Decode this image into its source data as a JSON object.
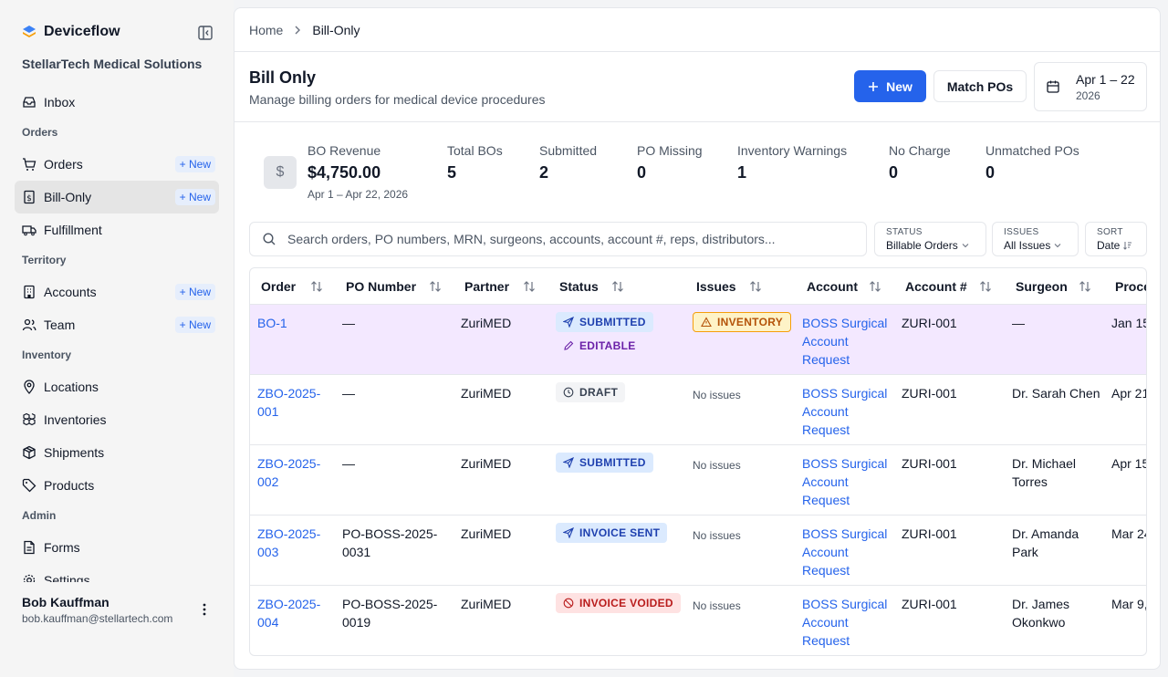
{
  "app": {
    "name": "Deviceflow",
    "org": "StellarTech Medical Solutions"
  },
  "sidebar": {
    "new_label": "New",
    "items": [
      {
        "label": "Inbox"
      },
      {
        "section": "Orders"
      },
      {
        "label": "Orders",
        "new": true
      },
      {
        "label": "Bill-Only",
        "new": true,
        "active": true
      },
      {
        "label": "Fulfillment"
      },
      {
        "section": "Territory"
      },
      {
        "label": "Accounts",
        "new": true
      },
      {
        "label": "Team",
        "new": true
      },
      {
        "section": "Inventory"
      },
      {
        "label": "Locations"
      },
      {
        "label": "Inventories"
      },
      {
        "label": "Shipments"
      },
      {
        "label": "Products"
      },
      {
        "section": "Admin"
      },
      {
        "label": "Forms"
      },
      {
        "label": "Settings"
      }
    ],
    "user": {
      "name": "Bob Kauffman",
      "email": "bob.kauffman@stellartech.com"
    }
  },
  "breadcrumb": {
    "home": "Home",
    "current": "Bill-Only"
  },
  "page": {
    "title": "Bill Only",
    "subtitle": "Manage billing orders for medical device procedures",
    "new_button": "New",
    "match_button": "Match POs",
    "date_range": "Apr 1 – 22",
    "date_year": "2026"
  },
  "stats": {
    "revenue": {
      "label": "BO Revenue",
      "value": "$4,750.00",
      "note": "Apr 1 – Apr 22, 2026"
    },
    "total": {
      "label": "Total BOs",
      "value": "5"
    },
    "submitted": {
      "label": "Submitted",
      "value": "2"
    },
    "po_missing": {
      "label": "PO Missing",
      "value": "0"
    },
    "inv_warnings": {
      "label": "Inventory Warnings",
      "value": "1"
    },
    "no_charge": {
      "label": "No Charge",
      "value": "0"
    },
    "unmatched": {
      "label": "Unmatched POs",
      "value": "0"
    }
  },
  "search": {
    "placeholder": "Search orders, PO numbers, MRN, surgeons, accounts, account #, reps, distributors..."
  },
  "filters": {
    "status": {
      "label": "STATUS",
      "value": "Billable Orders"
    },
    "issues": {
      "label": "ISSUES",
      "value": "All Issues"
    },
    "sort": {
      "label": "SORT",
      "value": "Date"
    }
  },
  "table": {
    "columns": {
      "order": "Order",
      "po": "PO Number",
      "partner": "Partner",
      "status": "Status",
      "issues": "Issues",
      "account": "Account",
      "account_no": "Account #",
      "surgeon": "Surgeon",
      "procedure": "Proce"
    },
    "rows": [
      {
        "order_l1": "BO-1",
        "order_l2": "",
        "po_l1": "—",
        "po_l2": "",
        "partner": "ZuriMED",
        "status": "SUBMITTED",
        "status2": "EDITABLE",
        "issue": "INVENTORY",
        "issue_text": "",
        "account_l1": "BOSS Surgical",
        "account_l2": "Account",
        "account_l3": "Request",
        "account_no": "ZURI-001",
        "surgeon_l1": "—",
        "surgeon_l2": "",
        "procedure": "Jan 15"
      },
      {
        "order_l1": "ZBO-2025-",
        "order_l2": "001",
        "po_l1": "—",
        "po_l2": "",
        "partner": "ZuriMED",
        "status": "DRAFT",
        "status2": "",
        "issue": "",
        "issue_text": "No issues",
        "account_l1": "BOSS Surgical",
        "account_l2": "Account",
        "account_l3": "Request",
        "account_no": "ZURI-001",
        "surgeon_l1": "Dr. Sarah Chen",
        "surgeon_l2": "",
        "procedure": "Apr 21"
      },
      {
        "order_l1": "ZBO-2025-",
        "order_l2": "002",
        "po_l1": "—",
        "po_l2": "",
        "partner": "ZuriMED",
        "status": "SUBMITTED",
        "status2": "",
        "issue": "",
        "issue_text": "No issues",
        "account_l1": "BOSS Surgical",
        "account_l2": "Account",
        "account_l3": "Request",
        "account_no": "ZURI-001",
        "surgeon_l1": "Dr. Michael",
        "surgeon_l2": "Torres",
        "procedure": "Apr 15"
      },
      {
        "order_l1": "ZBO-2025-",
        "order_l2": "003",
        "po_l1": "PO-BOSS-2025-",
        "po_l2": "0031",
        "partner": "ZuriMED",
        "status": "INVOICE SENT",
        "status2": "",
        "issue": "",
        "issue_text": "No issues",
        "account_l1": "BOSS Surgical",
        "account_l2": "Account",
        "account_l3": "Request",
        "account_no": "ZURI-001",
        "surgeon_l1": "Dr. Amanda",
        "surgeon_l2": "Park",
        "procedure": "Mar 24"
      },
      {
        "order_l1": "ZBO-2025-",
        "order_l2": "004",
        "po_l1": "PO-BOSS-2025-",
        "po_l2": "0019",
        "partner": "ZuriMED",
        "status": "INVOICE VOIDED",
        "status2": "",
        "issue": "",
        "issue_text": "No issues",
        "account_l1": "BOSS Surgical",
        "account_l2": "Account",
        "account_l3": "Request",
        "account_no": "ZURI-001",
        "surgeon_l1": "Dr. James",
        "surgeon_l2": "Okonkwo",
        "procedure": "Mar 9,"
      }
    ]
  },
  "colors": {
    "accent": "#2563eb",
    "highlight_row": "#f3e8ff"
  }
}
